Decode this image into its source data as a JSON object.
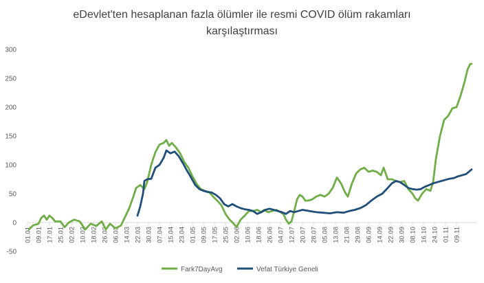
{
  "chart_data": {
    "type": "line",
    "title_line1": "eDevlet'ten hesaplanan fazla ölümler ile resmi COVID ölüm rakamları",
    "title_line2": "karşılaştırması",
    "xlabel": "",
    "ylabel": "",
    "ylim": [
      -50,
      300
    ],
    "yticks": [
      -50,
      0,
      50,
      100,
      150,
      200,
      250,
      300
    ],
    "grid": false,
    "legend_position": "bottom",
    "x_tick_labels": [
      "01.01",
      "09.01",
      "17.01",
      "25.01",
      "02.02",
      "10.02",
      "18.02",
      "26.02",
      "06.03",
      "14.03",
      "22.03",
      "30.03",
      "07.04",
      "15.04",
      "23.04",
      "01.05",
      "09.05",
      "17.05",
      "25.05",
      "02.06",
      "10.06",
      "18.06",
      "26.06",
      "04.07",
      "12.07",
      "20.07",
      "28.07",
      "05.08",
      "13.08",
      "21.08",
      "29.08",
      "06.09",
      "14.09",
      "22.09",
      "30.09",
      "08.10",
      "16.10",
      "24.10",
      "01.11",
      "09.11"
    ],
    "series": [
      {
        "name": "Fark7DayAvg",
        "color": "#70ad47",
        "points": [
          [
            1,
            -12
          ],
          [
            4,
            -5
          ],
          [
            8,
            -2
          ],
          [
            10,
            8
          ],
          [
            12,
            12
          ],
          [
            14,
            5
          ],
          [
            16,
            12
          ],
          [
            18,
            8
          ],
          [
            20,
            2
          ],
          [
            24,
            2
          ],
          [
            27,
            -8
          ],
          [
            30,
            0
          ],
          [
            34,
            5
          ],
          [
            38,
            2
          ],
          [
            42,
            -12
          ],
          [
            46,
            -2
          ],
          [
            50,
            -6
          ],
          [
            54,
            2
          ],
          [
            57,
            -12
          ],
          [
            60,
            -2
          ],
          [
            64,
            -10
          ],
          [
            68,
            -5
          ],
          [
            71,
            10
          ],
          [
            74,
            25
          ],
          [
            77,
            45
          ],
          [
            79,
            60
          ],
          [
            82,
            65
          ],
          [
            85,
            58
          ],
          [
            87,
            70
          ],
          [
            90,
            100
          ],
          [
            93,
            122
          ],
          [
            96,
            135
          ],
          [
            99,
            138
          ],
          [
            101,
            143
          ],
          [
            103,
            133
          ],
          [
            105,
            138
          ],
          [
            108,
            130
          ],
          [
            111,
            120
          ],
          [
            114,
            105
          ],
          [
            117,
            95
          ],
          [
            120,
            80
          ],
          [
            123,
            67
          ],
          [
            126,
            58
          ],
          [
            129,
            55
          ],
          [
            132,
            53
          ],
          [
            135,
            45
          ],
          [
            138,
            38
          ],
          [
            141,
            30
          ],
          [
            144,
            15
          ],
          [
            147,
            5
          ],
          [
            150,
            -2
          ],
          [
            152,
            -8
          ],
          [
            155,
            5
          ],
          [
            158,
            12
          ],
          [
            161,
            20
          ],
          [
            164,
            20
          ],
          [
            167,
            22
          ],
          [
            170,
            18
          ],
          [
            172,
            22
          ],
          [
            175,
            18
          ],
          [
            178,
            20
          ],
          [
            181,
            22
          ],
          [
            184,
            18
          ],
          [
            186,
            15
          ],
          [
            188,
            5
          ],
          [
            190,
            -2
          ],
          [
            192,
            2
          ],
          [
            194,
            20
          ],
          [
            196,
            40
          ],
          [
            198,
            48
          ],
          [
            200,
            45
          ],
          [
            202,
            38
          ],
          [
            204,
            38
          ],
          [
            207,
            40
          ],
          [
            210,
            45
          ],
          [
            213,
            48
          ],
          [
            216,
            45
          ],
          [
            219,
            50
          ],
          [
            222,
            60
          ],
          [
            225,
            78
          ],
          [
            228,
            68
          ],
          [
            231,
            52
          ],
          [
            233,
            45
          ],
          [
            236,
            68
          ],
          [
            239,
            85
          ],
          [
            242,
            92
          ],
          [
            245,
            95
          ],
          [
            248,
            88
          ],
          [
            251,
            90
          ],
          [
            254,
            88
          ],
          [
            257,
            82
          ],
          [
            259,
            95
          ],
          [
            262,
            75
          ],
          [
            265,
            75
          ],
          [
            268,
            72
          ],
          [
            271,
            70
          ],
          [
            274,
            72
          ],
          [
            277,
            58
          ],
          [
            280,
            50
          ],
          [
            282,
            42
          ],
          [
            284,
            38
          ],
          [
            287,
            50
          ],
          [
            290,
            58
          ],
          [
            293,
            55
          ],
          [
            295,
            70
          ],
          [
            297,
            110
          ],
          [
            300,
            150
          ],
          [
            303,
            178
          ],
          [
            306,
            185
          ],
          [
            309,
            198
          ],
          [
            312,
            200
          ],
          [
            315,
            220
          ],
          [
            318,
            245
          ],
          [
            320,
            265
          ],
          [
            322,
            275
          ],
          [
            323,
            275
          ]
        ]
      },
      {
        "name": "Vefat Türkiye Geneli",
        "color": "#1f4e79",
        "points": [
          [
            80,
            12
          ],
          [
            82,
            28
          ],
          [
            84,
            50
          ],
          [
            85,
            72
          ],
          [
            87,
            75
          ],
          [
            90,
            76
          ],
          [
            93,
            95
          ],
          [
            96,
            100
          ],
          [
            99,
            112
          ],
          [
            101,
            125
          ],
          [
            104,
            120
          ],
          [
            107,
            123
          ],
          [
            110,
            115
          ],
          [
            113,
            103
          ],
          [
            116,
            90
          ],
          [
            119,
            78
          ],
          [
            122,
            65
          ],
          [
            125,
            58
          ],
          [
            128,
            55
          ],
          [
            131,
            53
          ],
          [
            134,
            52
          ],
          [
            137,
            48
          ],
          [
            140,
            42
          ],
          [
            143,
            32
          ],
          [
            146,
            28
          ],
          [
            149,
            32
          ],
          [
            152,
            28
          ],
          [
            155,
            25
          ],
          [
            158,
            23
          ],
          [
            161,
            22
          ],
          [
            164,
            20
          ],
          [
            167,
            15
          ],
          [
            170,
            18
          ],
          [
            173,
            22
          ],
          [
            176,
            24
          ],
          [
            179,
            22
          ],
          [
            182,
            20
          ],
          [
            185,
            18
          ],
          [
            188,
            15
          ],
          [
            191,
            20
          ],
          [
            194,
            18
          ],
          [
            197,
            20
          ],
          [
            200,
            22
          ],
          [
            205,
            20
          ],
          [
            210,
            18
          ],
          [
            215,
            17
          ],
          [
            220,
            16
          ],
          [
            225,
            18
          ],
          [
            230,
            17
          ],
          [
            234,
            20
          ],
          [
            238,
            22
          ],
          [
            242,
            25
          ],
          [
            246,
            30
          ],
          [
            250,
            38
          ],
          [
            254,
            45
          ],
          [
            258,
            50
          ],
          [
            262,
            60
          ],
          [
            265,
            68
          ],
          [
            268,
            72
          ],
          [
            271,
            70
          ],
          [
            274,
            65
          ],
          [
            277,
            60
          ],
          [
            280,
            58
          ],
          [
            283,
            57
          ],
          [
            286,
            58
          ],
          [
            289,
            62
          ],
          [
            292,
            65
          ],
          [
            295,
            68
          ],
          [
            298,
            70
          ],
          [
            301,
            72
          ],
          [
            304,
            74
          ],
          [
            307,
            76
          ],
          [
            310,
            77
          ],
          [
            313,
            80
          ],
          [
            316,
            82
          ],
          [
            319,
            84
          ],
          [
            321,
            88
          ],
          [
            323,
            92
          ]
        ]
      }
    ]
  }
}
